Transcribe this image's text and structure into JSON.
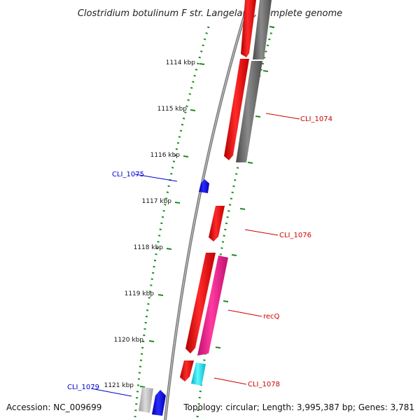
{
  "title": "Clostridium botulinum F str. Langeland, complete genome",
  "footer": {
    "accession": "Accession: NC_009699",
    "topology": "Topology: circular; Length: 3,995,387 bp; Genes: 3,781"
  },
  "colors": {
    "forward_cds": "#ff0000",
    "forward_alt": "#ff1493",
    "reverse_cds": "#0000ff",
    "other_gray": "#707070",
    "light_gray": "#bdbdbd",
    "cyan": "#00e5ee",
    "tick_green": "#1e8c1e",
    "label_red": "#cc0000",
    "label_blue": "#0000cc"
  },
  "kbp_ticks": [
    "1114 kbp",
    "1115 kbp",
    "1116 kbp",
    "1117 kbp",
    "1118 kbp",
    "1119 kbp",
    "1120 kbp",
    "1121 kbp"
  ],
  "gene_labels": {
    "cli_1074": "CLI_1074",
    "cli_1075": "CLI_1075",
    "cli_1076": "CLI_1076",
    "recq": "recQ",
    "cli_1078": "CLI_1078",
    "cli_1079": "CLI_1079"
  }
}
